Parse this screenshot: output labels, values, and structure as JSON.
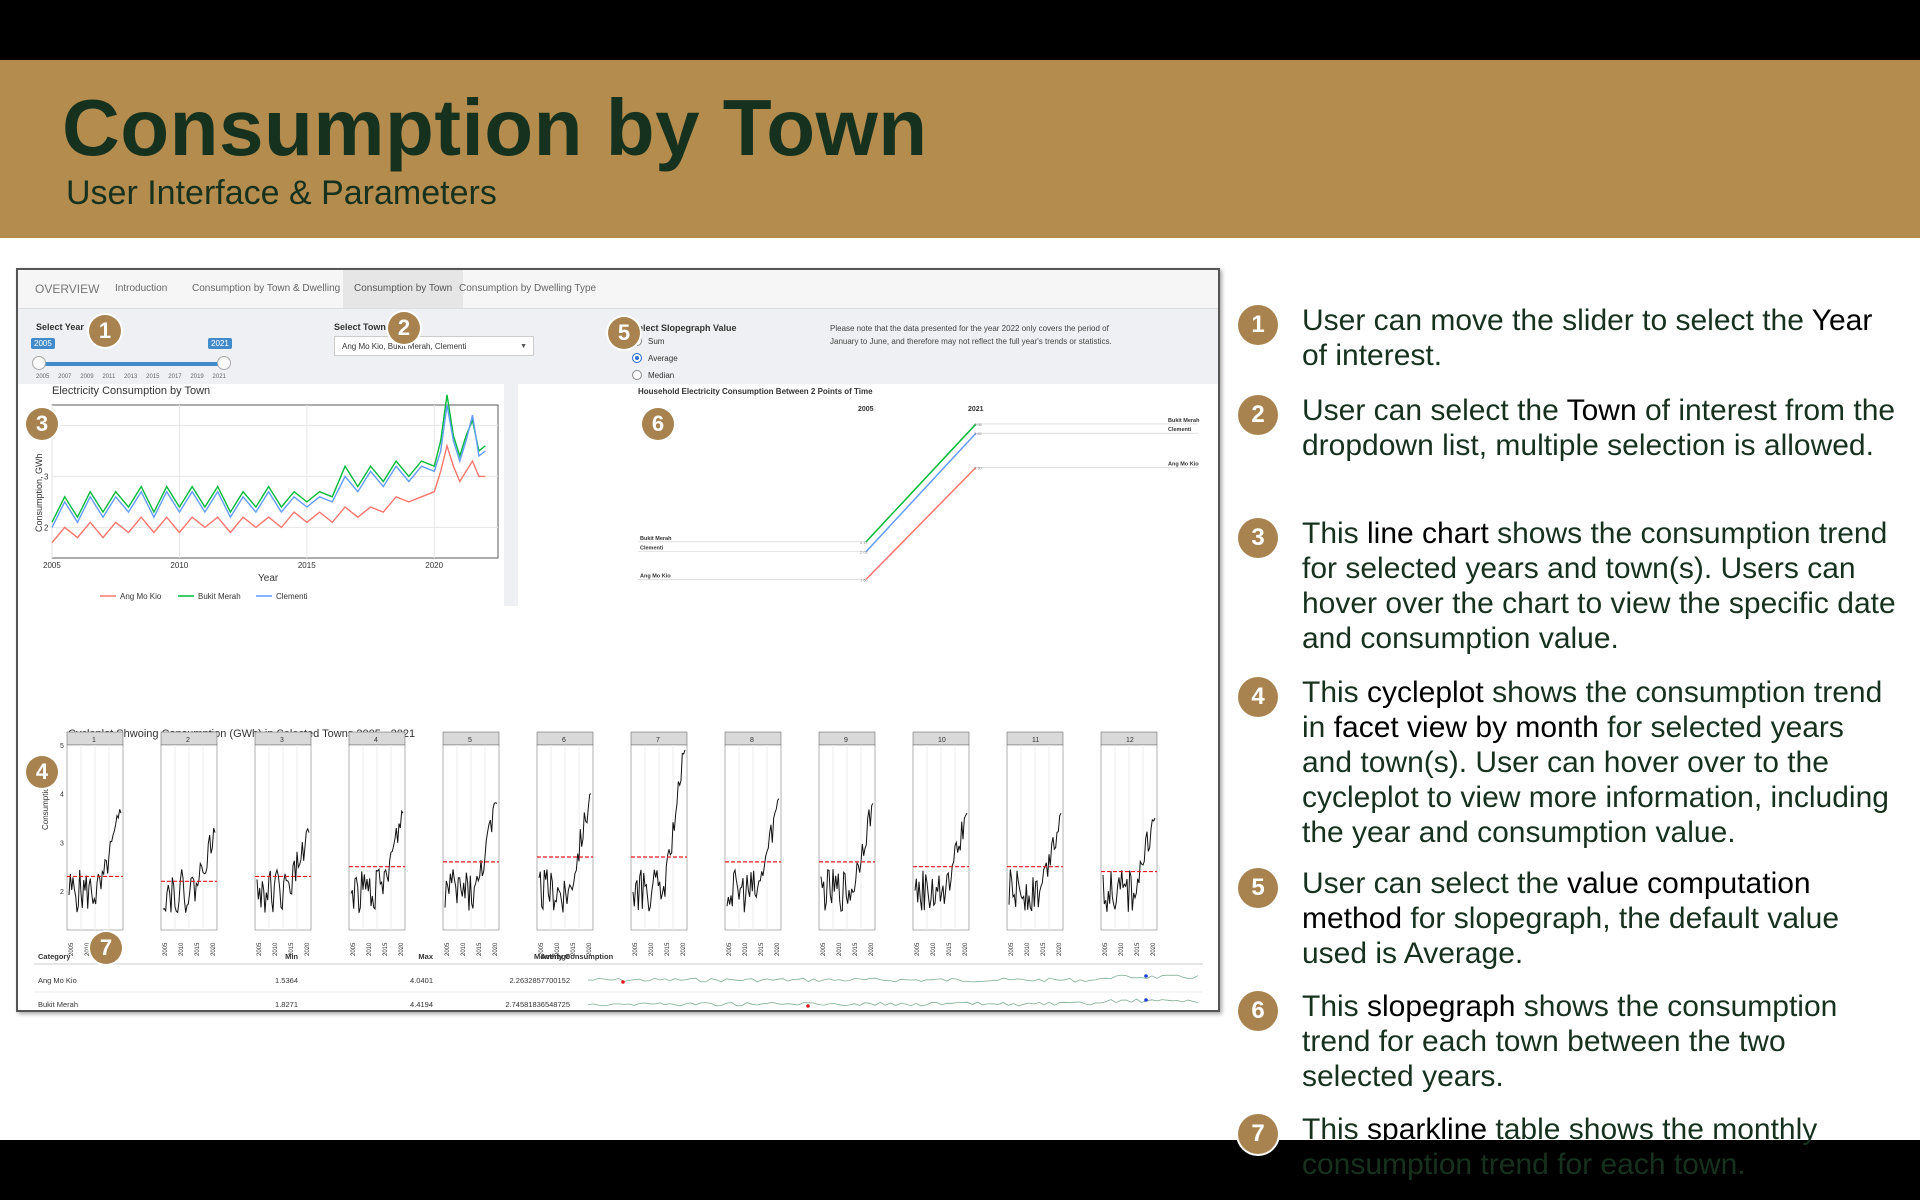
{
  "header": {
    "title": "Consumption by Town",
    "subtitle": "User Interface & Parameters"
  },
  "app": {
    "tabs": [
      {
        "label": "OVERVIEW",
        "active": false
      },
      {
        "label": "Introduction",
        "active": false
      },
      {
        "label": "Consumption by Town & Dwelling Type",
        "active": false
      },
      {
        "label": "Consumption by Town",
        "active": true
      },
      {
        "label": "Consumption by Dwelling Type",
        "active": false
      }
    ],
    "select_year": {
      "label": "Select Year",
      "range_start": "2005",
      "range_end": "2021",
      "ticks": [
        "2005",
        "2007",
        "2009",
        "2011",
        "2013",
        "2015",
        "2017",
        "2019",
        "2021"
      ]
    },
    "select_town": {
      "label": "Select Town",
      "value": "Ang Mo Kio, Bukit Merah, Clementi"
    },
    "slopegraph_value": {
      "label": "Select Slopegraph Value",
      "options": [
        "Sum",
        "Average",
        "Median"
      ],
      "selected": "Average"
    },
    "note": "Please note that the data presented for the year 2022 only covers the period of January to June, and therefore may not reflect the full year's trends or statistics."
  },
  "chart_data": [
    {
      "type": "line",
      "title": "Electricity Consumption by Town",
      "xlabel": "Year",
      "ylabel": "Consumption, GWh",
      "x_ticks": [
        "2005",
        "2010",
        "2015",
        "2020"
      ],
      "y_ticks": [
        "2",
        "3",
        "4"
      ],
      "xlim": [
        2005,
        2022.5
      ],
      "ylim": [
        1.4,
        4.4
      ],
      "grid": true,
      "legend": "bottom",
      "x": [
        2005.0,
        2005.5,
        2006.0,
        2006.5,
        2007.0,
        2007.5,
        2008.0,
        2008.5,
        2009.0,
        2009.5,
        2010.0,
        2010.5,
        2011.0,
        2011.5,
        2012.0,
        2012.5,
        2013.0,
        2013.5,
        2014.0,
        2014.5,
        2015.0,
        2015.5,
        2016.0,
        2016.5,
        2017.0,
        2017.5,
        2018.0,
        2018.5,
        2019.0,
        2019.5,
        2020.0,
        2020.25,
        2020.5,
        2020.75,
        2021.0,
        2021.25,
        2021.5,
        2021.75,
        2022.0
      ],
      "series": [
        {
          "name": "Ang Mo Kio",
          "color": "#f8766d",
          "values": [
            1.7,
            2.0,
            1.8,
            2.1,
            1.8,
            2.1,
            1.9,
            2.2,
            1.9,
            2.2,
            1.9,
            2.2,
            2.0,
            2.2,
            1.9,
            2.2,
            2.0,
            2.2,
            2.0,
            2.3,
            2.1,
            2.3,
            2.1,
            2.4,
            2.2,
            2.4,
            2.3,
            2.6,
            2.5,
            2.6,
            2.7,
            3.1,
            3.6,
            3.2,
            2.9,
            3.1,
            3.3,
            3.0,
            3.0
          ]
        },
        {
          "name": "Bukit Merah",
          "color": "#00ba38",
          "values": [
            2.1,
            2.6,
            2.2,
            2.7,
            2.3,
            2.7,
            2.4,
            2.8,
            2.3,
            2.8,
            2.4,
            2.8,
            2.4,
            2.8,
            2.3,
            2.7,
            2.4,
            2.8,
            2.4,
            2.7,
            2.5,
            2.7,
            2.6,
            3.2,
            2.8,
            3.2,
            2.9,
            3.3,
            3.0,
            3.3,
            3.2,
            3.7,
            4.6,
            3.8,
            3.4,
            3.8,
            4.1,
            3.5,
            3.6
          ]
        },
        {
          "name": "Clementi",
          "color": "#619cff",
          "values": [
            2.0,
            2.5,
            2.1,
            2.6,
            2.2,
            2.6,
            2.3,
            2.7,
            2.2,
            2.7,
            2.3,
            2.7,
            2.3,
            2.7,
            2.2,
            2.6,
            2.3,
            2.7,
            2.3,
            2.6,
            2.4,
            2.6,
            2.5,
            3.0,
            2.7,
            3.1,
            2.8,
            3.2,
            2.9,
            3.2,
            3.1,
            3.5,
            4.4,
            3.7,
            3.3,
            3.7,
            4.2,
            3.4,
            3.5
          ]
        }
      ]
    },
    {
      "type": "line",
      "title": "Household Electricity Consumption Between 2 Points of Time",
      "categories": [
        "2005",
        "2021"
      ],
      "series": [
        {
          "name": "Bukit Merah",
          "color": "#00ba38",
          "values": [
            2.17,
            3.96
          ]
        },
        {
          "name": "Clementi",
          "color": "#619cff",
          "values": [
            2.02,
            3.82
          ]
        },
        {
          "name": "Ang Mo Kio",
          "color": "#f8766d",
          "values": [
            1.6,
            3.3
          ]
        }
      ]
    },
    {
      "type": "line",
      "title": "Cycleplot Shwoing Consumption (GWh) in Selected Towns 2005 - 2021",
      "ylabel": "Consumption, GWh",
      "facets": [
        "1",
        "2",
        "3",
        "4",
        "5",
        "6",
        "7",
        "8",
        "9",
        "10",
        "11",
        "12"
      ],
      "x_ticks": [
        "2005",
        "2010",
        "2015",
        "2020"
      ],
      "y_ticks": [
        "2",
        "3",
        "4",
        "5"
      ],
      "ylim": [
        1.2,
        5.0
      ],
      "month_average": [
        2.3,
        2.2,
        2.3,
        2.5,
        2.6,
        2.7,
        2.7,
        2.6,
        2.6,
        2.5,
        2.5,
        2.4
      ],
      "month_peak": [
        3.6,
        3.2,
        3.2,
        3.6,
        3.8,
        4.0,
        4.9,
        3.9,
        3.8,
        3.6,
        3.6,
        3.5
      ]
    },
    {
      "type": "table",
      "columns": [
        "Category",
        "Min",
        "Max",
        "Average",
        "Monthly Consumption"
      ],
      "rows": [
        {
          "category": "Ang Mo Kio",
          "min": "1.5364",
          "max": "4.0401",
          "average": "2.2632857700152"
        },
        {
          "category": "Bukit Merah",
          "min": "1.8271",
          "max": "4.4194",
          "average": "2.74581836548725"
        }
      ]
    }
  ],
  "explanations": [
    {
      "num": "1",
      "parts": [
        [
          "User can move the slider to select the ",
          false
        ],
        [
          "Year",
          true
        ],
        [
          " of interest.",
          false
        ]
      ]
    },
    {
      "num": "2",
      "parts": [
        [
          "User can select the ",
          false
        ],
        [
          "Town",
          true
        ],
        [
          " of interest from the dropdown list, multiple selection is allowed.",
          false
        ]
      ]
    },
    {
      "num": "3",
      "parts": [
        [
          "This ",
          false
        ],
        [
          "line chart",
          true
        ],
        [
          " shows the consumption trend for selected years and town(s). Users can hover over the chart to view the specific date and consumption value.",
          false
        ]
      ]
    },
    {
      "num": "4",
      "parts": [
        [
          "This ",
          false
        ],
        [
          "cycleplot",
          true
        ],
        [
          " shows the consumption trend in ",
          false
        ],
        [
          "facet view by month",
          true
        ],
        [
          " for selected years and town(s). User can hover over to the cycleplot to view more information, including the year and consumption value.",
          false
        ]
      ]
    },
    {
      "num": "5",
      "parts": [
        [
          "User can select the ",
          false
        ],
        [
          "value computation method",
          true
        ],
        [
          " for slopegraph, the default value used is Average.",
          false
        ]
      ]
    },
    {
      "num": "6",
      "parts": [
        [
          "This ",
          false
        ],
        [
          "slopegraph",
          true
        ],
        [
          " shows the consumption trend for each town between the two selected years.",
          false
        ]
      ]
    },
    {
      "num": "7",
      "parts": [
        [
          "This ",
          false
        ],
        [
          "sparkline",
          true
        ],
        [
          " table shows the monthly consumption trend for each town.",
          false
        ]
      ]
    }
  ]
}
